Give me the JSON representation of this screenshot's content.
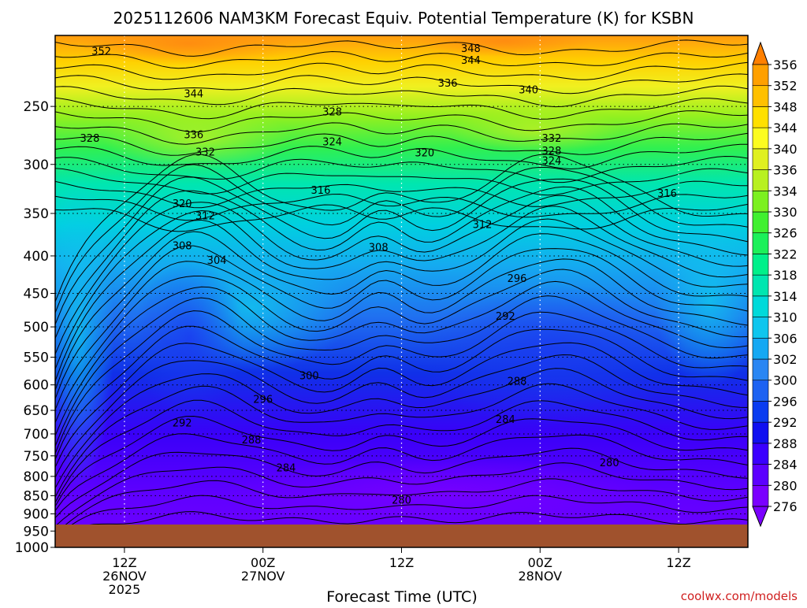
{
  "chart_data": {
    "type": "heatmap",
    "title": "2025112606 NAM3KM Forecast Equiv. Potential Temperature (K) for KSBN",
    "xlabel": "Forecast Time (UTC)",
    "ylabel": "",
    "watermark": "coolwx.com/models",
    "y_axis": {
      "scale": "pressure",
      "range": [
        1000,
        200
      ],
      "ticks": [
        250,
        300,
        350,
        400,
        450,
        500,
        550,
        600,
        650,
        700,
        750,
        800,
        850,
        900,
        950,
        1000
      ]
    },
    "x_axis": {
      "range": [
        "2025-11-26T06:00Z",
        "2025-11-28T18:00Z"
      ],
      "ticks": [
        {
          "label": "12Z",
          "date": "26NOV",
          "year": "2025",
          "time": "2025-11-26T12:00Z"
        },
        {
          "label": "00Z",
          "date": "27NOV",
          "year": "",
          "time": "2025-11-27T00:00Z"
        },
        {
          "label": "12Z",
          "date": "",
          "year": "",
          "time": "2025-11-27T12:00Z"
        },
        {
          "label": "00Z",
          "date": "28NOV",
          "year": "",
          "time": "2025-11-28T00:00Z"
        },
        {
          "label": "12Z",
          "date": "",
          "year": "",
          "time": "2025-11-28T12:00Z"
        }
      ]
    },
    "colorbar": {
      "levels": [
        276,
        280,
        284,
        288,
        292,
        296,
        300,
        302,
        306,
        310,
        314,
        318,
        322,
        326,
        330,
        334,
        336,
        340,
        344,
        348,
        352,
        356
      ],
      "colors": [
        "#7a00ff",
        "#5c00ff",
        "#3a00ff",
        "#1010f0",
        "#0a3cf0",
        "#1d62f2",
        "#2a86f3",
        "#15a8f3",
        "#0fc6ee",
        "#00dada",
        "#00e6b0",
        "#00f08a",
        "#1cf05a",
        "#40f030",
        "#7cf020",
        "#b8f020",
        "#e0f020",
        "#fcfc20",
        "#ffe000",
        "#ffc000",
        "#ffa000",
        "#ff8000"
      ],
      "extend": "both"
    },
    "grid": true,
    "contour_labels": [
      {
        "value": "352",
        "time": "2025-11-26T10:00Z",
        "p": 210
      },
      {
        "value": "348",
        "time": "2025-11-27T18:00Z",
        "p": 208
      },
      {
        "value": "344",
        "time": "2025-11-27T18:00Z",
        "p": 216
      },
      {
        "value": "344",
        "time": "2025-11-26T18:00Z",
        "p": 240
      },
      {
        "value": "336",
        "time": "2025-11-27T16:00Z",
        "p": 232
      },
      {
        "value": "340",
        "time": "2025-11-27T23:00Z",
        "p": 237
      },
      {
        "value": "328",
        "time": "2025-11-26T09:00Z",
        "p": 276
      },
      {
        "value": "336",
        "time": "2025-11-26T18:00Z",
        "p": 273
      },
      {
        "value": "328",
        "time": "2025-11-27T06:00Z",
        "p": 254
      },
      {
        "value": "324",
        "time": "2025-11-27T06:00Z",
        "p": 279
      },
      {
        "value": "332",
        "time": "2025-11-26T19:00Z",
        "p": 288
      },
      {
        "value": "320",
        "time": "2025-11-27T14:00Z",
        "p": 289
      },
      {
        "value": "332",
        "time": "2025-11-28T01:00Z",
        "p": 276
      },
      {
        "value": "328",
        "time": "2025-11-28T01:00Z",
        "p": 287
      },
      {
        "value": "324",
        "time": "2025-11-28T01:00Z",
        "p": 296
      },
      {
        "value": "316",
        "time": "2025-11-27T05:00Z",
        "p": 325
      },
      {
        "value": "316",
        "time": "2025-11-28T11:00Z",
        "p": 328
      },
      {
        "value": "320",
        "time": "2025-11-26T17:00Z",
        "p": 339
      },
      {
        "value": "312",
        "time": "2025-11-26T19:00Z",
        "p": 352
      },
      {
        "value": "312",
        "time": "2025-11-27T19:00Z",
        "p": 362
      },
      {
        "value": "308",
        "time": "2025-11-26T17:00Z",
        "p": 387
      },
      {
        "value": "304",
        "time": "2025-11-26T20:00Z",
        "p": 405
      },
      {
        "value": "308",
        "time": "2025-11-27T10:00Z",
        "p": 389
      },
      {
        "value": "296",
        "time": "2025-11-27T22:00Z",
        "p": 429
      },
      {
        "value": "292",
        "time": "2025-11-27T21:00Z",
        "p": 483
      },
      {
        "value": "300",
        "time": "2025-11-27T04:00Z",
        "p": 582
      },
      {
        "value": "288",
        "time": "2025-11-27T22:00Z",
        "p": 592
      },
      {
        "value": "296",
        "time": "2025-11-27T00:00Z",
        "p": 627
      },
      {
        "value": "284",
        "time": "2025-11-27T21:00Z",
        "p": 668
      },
      {
        "value": "292",
        "time": "2025-11-26T17:00Z",
        "p": 675
      },
      {
        "value": "288",
        "time": "2025-11-26T23:00Z",
        "p": 712
      },
      {
        "value": "284",
        "time": "2025-11-27T02:00Z",
        "p": 778
      },
      {
        "value": "280",
        "time": "2025-11-28T06:00Z",
        "p": 765
      },
      {
        "value": "280",
        "time": "2025-11-27T12:00Z",
        "p": 861
      }
    ]
  }
}
